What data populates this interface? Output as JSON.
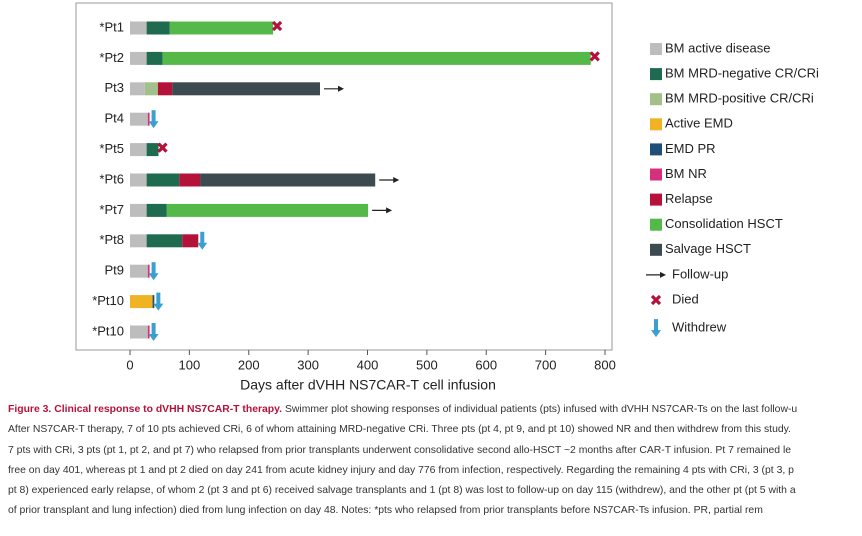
{
  "chart_data": {
    "type": "swimmer",
    "xlabel": "Days after dVHH NS7CAR-T cell infusion",
    "xlim": [
      0,
      800
    ],
    "xticks": [
      0,
      100,
      200,
      300,
      400,
      500,
      600,
      700,
      800
    ],
    "categories": [
      "*Pt1",
      "*Pt2",
      "Pt3",
      "Pt4",
      "*Pt5",
      "*Pt6",
      "*Pt7",
      "*Pt8",
      "Pt9",
      "*Pt10",
      "*Pt10"
    ],
    "series": [
      {
        "name": "BM active disease",
        "color": "#bdbdbd",
        "values": [
          28,
          28,
          25,
          30,
          28,
          28,
          28,
          28,
          30,
          null,
          30
        ]
      },
      {
        "name": "BM MRD-negative CR/CRi",
        "color": "#1e6b4f",
        "values": [
          39,
          27,
          null,
          null,
          20,
          55,
          34,
          60,
          null,
          null,
          null
        ]
      },
      {
        "name": "BM MRD-positive CR/CRi",
        "color": "#a3bf8a",
        "values": [
          null,
          null,
          22,
          null,
          null,
          null,
          null,
          null,
          null,
          null,
          null
        ]
      },
      {
        "name": "Active EMD",
        "color": "#f0b323",
        "values": [
          null,
          null,
          null,
          null,
          null,
          null,
          null,
          null,
          null,
          38,
          null
        ]
      },
      {
        "name": "EMD PR",
        "color": "#1f4e79",
        "values": [
          null,
          null,
          null,
          null,
          null,
          null,
          null,
          null,
          null,
          3,
          null
        ]
      },
      {
        "name": "BM NR",
        "color": "#d6307c",
        "values": [
          null,
          null,
          null,
          3,
          null,
          null,
          null,
          null,
          3,
          null,
          3
        ]
      },
      {
        "name": "Relapse",
        "color": "#b5123a",
        "values": [
          null,
          null,
          24,
          null,
          null,
          35,
          null,
          27,
          null,
          null,
          null
        ]
      },
      {
        "name": "Consolidation HSCT",
        "color": "#55b94a",
        "values": [
          174,
          721,
          null,
          null,
          null,
          null,
          339,
          null,
          null,
          null,
          null
        ]
      },
      {
        "name": "Salvage HSCT",
        "color": "#3d4a4f",
        "values": [
          null,
          null,
          249,
          null,
          null,
          295,
          null,
          null,
          null,
          null,
          null
        ]
      }
    ],
    "markers": [
      {
        "name": "Follow-up",
        "shape": "arrow",
        "color": "#222222"
      },
      {
        "name": "Died",
        "shape": "cross",
        "color": "#b5123a"
      },
      {
        "name": "Withdrew",
        "shape": "down-arrow",
        "color": "#3aa0d0"
      }
    ],
    "outcome": [
      "Died",
      "Died",
      "Follow-up",
      "Withdrew",
      "Died",
      "Follow-up",
      "Follow-up",
      "Withdrew",
      "Withdrew",
      "Withdrew",
      "Withdrew"
    ]
  },
  "caption": {
    "label": "Figure 3. Clinical response to dVHH NS7CAR-T therapy.",
    "lines": [
      "Swimmer plot showing responses of individual patients (pts) infused with dVHH NS7CAR-Ts on the last follow-u",
      "After NS7CAR-T therapy, 7 of 10 pts achieved CRi, 6 of whom attaining MRD-negative CRi. Three pts (pt 4, pt 9, and pt 10) showed NR and then withdrew from this study.",
      "7 pts with CRi, 3 pts (pt 1, pt 2, and pt 7) who relapsed from prior transplants underwent consolidative second allo-HSCT ~2 months after CAR-T infusion. Pt 7 remained le",
      "free on day 401, whereas pt 1 and pt 2 died on day 241 from acute kidney injury and day 776 from infection, respectively. Regarding the remaining 4 pts with CRi, 3 (pt 3, p",
      "pt 8) experienced early relapse, of whom 2 (pt 3 and pt 6) received salvage transplants and 1 (pt 8) was lost to follow-up on day 115 (withdrew), and the other pt (pt 5 with a",
      "of prior transplant and lung infection) died from lung infection on day 48. Notes: *pts who relapsed from prior transplants before NS7CAR-Ts infusion. PR, partial rem"
    ]
  }
}
